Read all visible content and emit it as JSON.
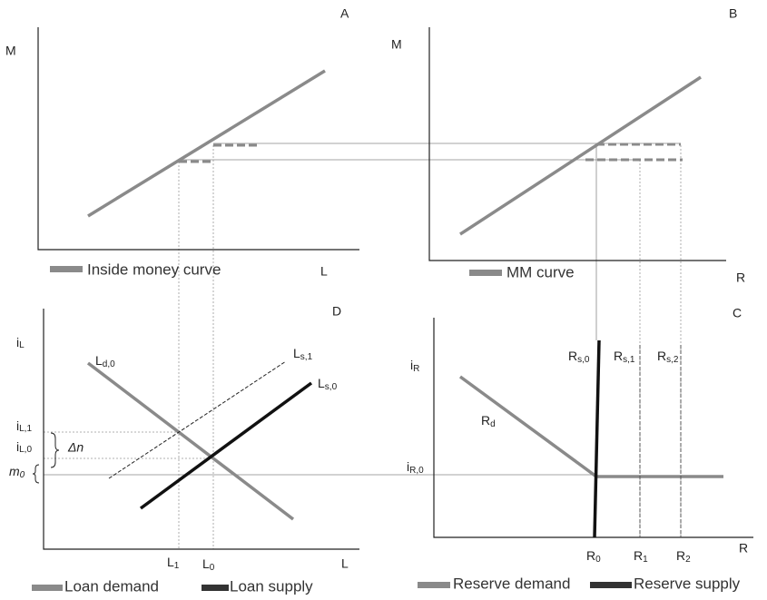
{
  "panel_a": {
    "letter": "A",
    "y_label": "M",
    "x_label": "L",
    "legend": "Inside money curve"
  },
  "panel_b": {
    "letter": "B",
    "y_label": "M",
    "x_label": "R",
    "legend": "MM curve"
  },
  "panel_c": {
    "letter": "C",
    "y_label": {
      "base": "i",
      "sub": "R"
    },
    "x_label": "R",
    "curves": {
      "rd": {
        "base": "R",
        "sub": "d"
      },
      "rs0": {
        "base": "R",
        "sub": "s,0"
      },
      "rs1": {
        "base": "R",
        "sub": "s,1"
      },
      "rs2": {
        "base": "R",
        "sub": "s,2"
      }
    },
    "y_ticks": [
      {
        "base": "i",
        "sub": "R,0"
      }
    ],
    "x_ticks": [
      {
        "base": "R",
        "sub": "0"
      },
      {
        "base": "R",
        "sub": "1"
      },
      {
        "base": "R",
        "sub": "2"
      }
    ],
    "legend": [
      "Reserve demand",
      "Reserve supply"
    ]
  },
  "panel_d": {
    "letter": "D",
    "y_label": {
      "base": "i",
      "sub": "L"
    },
    "x_label": "L",
    "curves": {
      "ld0": {
        "base": "L",
        "sub": "d,0"
      },
      "ls1": {
        "base": "L",
        "sub": "s,1"
      },
      "ls0": {
        "base": "L",
        "sub": "s,0"
      }
    },
    "y_ticks": [
      {
        "base": "i",
        "sub": "L,1"
      },
      {
        "base": "i",
        "sub": "L,0"
      },
      {
        "base": "m",
        "sub": "0"
      }
    ],
    "delta": "Δn",
    "x_ticks": [
      {
        "base": "L",
        "sub": "1"
      },
      {
        "base": "L",
        "sub": "0"
      }
    ],
    "legend": [
      "Loan demand",
      "Loan supply"
    ]
  }
}
